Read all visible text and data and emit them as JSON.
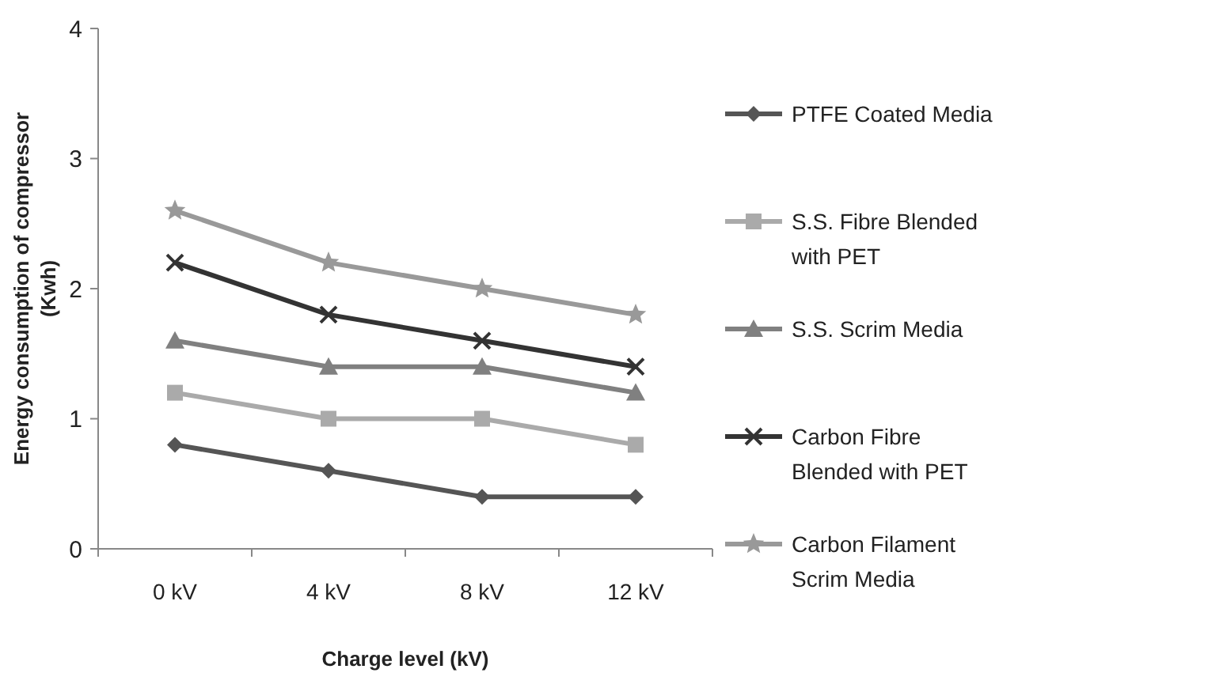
{
  "chart_data": {
    "type": "line",
    "xlabel": "Charge level (kV)",
    "ylabel": "Energy consumption of compressor (Kwh)",
    "categories": [
      "0 kV",
      "4 kV",
      "8 kV",
      "12 kV"
    ],
    "ylim": [
      0,
      4
    ],
    "yticks": [
      0,
      1,
      2,
      3,
      4
    ],
    "grid": false,
    "legend": "right",
    "series": [
      {
        "name": "PTFE Coated Media",
        "color": "#555555",
        "marker": "diamond",
        "values": [
          0.8,
          0.6,
          0.4,
          0.4
        ]
      },
      {
        "name": "S.S. Fibre Blended with PET",
        "color": "#aaaaaa",
        "marker": "square",
        "values": [
          1.2,
          1.0,
          1.0,
          0.8
        ]
      },
      {
        "name": "S.S. Scrim Media",
        "color": "#808080",
        "marker": "triangle",
        "values": [
          1.6,
          1.4,
          1.4,
          1.2
        ]
      },
      {
        "name": "Carbon Fibre Blended with PET",
        "color": "#333333",
        "marker": "cross",
        "values": [
          2.2,
          1.8,
          1.6,
          1.4
        ]
      },
      {
        "name": "Carbon Filament Scrim Media",
        "color": "#999999",
        "marker": "star",
        "values": [
          2.6,
          2.2,
          2.0,
          1.8
        ]
      }
    ]
  }
}
